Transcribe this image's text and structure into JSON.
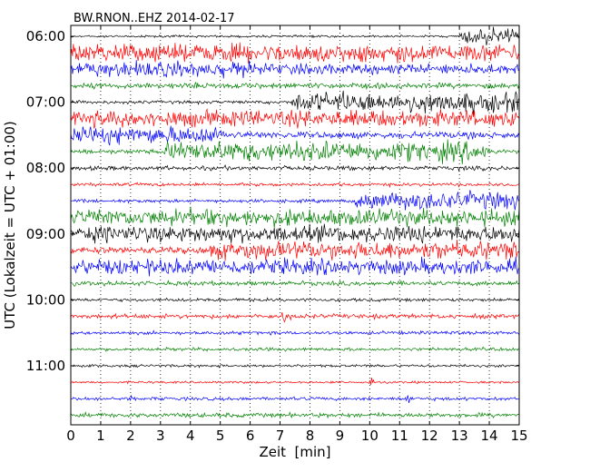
{
  "chart_data": {
    "type": "line",
    "title": "BW.RNON..EHZ 2014-02-17",
    "xlabel": "Zeit  [min]",
    "ylabel": "UTC (Lokalzeit = UTC + 01:00)",
    "xlim": [
      0,
      15
    ],
    "x_ticks": [
      0,
      1,
      2,
      3,
      4,
      5,
      6,
      7,
      8,
      9,
      10,
      11,
      12,
      13,
      14,
      15
    ],
    "x_tick_labels": [
      "0",
      "1",
      "2",
      "3",
      "4",
      "5",
      "6",
      "7",
      "8",
      "9",
      "10",
      "11",
      "12",
      "13",
      "14",
      "15"
    ],
    "y_tick_labels": [
      "06:00",
      "07:00",
      "08:00",
      "09:00",
      "10:00",
      "11:00"
    ],
    "grid": "vertical dotted",
    "colors": [
      "#000000",
      "#ff0000",
      "#0000ff",
      "#008000"
    ],
    "traces": [
      {
        "start": "06:00",
        "base": 1.0,
        "bursts": [
          {
            "from": 13.0,
            "to": 15.0,
            "amp": 7
          }
        ]
      },
      {
        "start": "06:15",
        "base": 8.0,
        "bursts": []
      },
      {
        "start": "06:30",
        "base": 4.5,
        "bursts": [
          {
            "from": 0.0,
            "to": 6.9,
            "amp": 7
          }
        ]
      },
      {
        "start": "06:45",
        "base": 2.5,
        "bursts": []
      },
      {
        "start": "07:00",
        "base": 1.5,
        "bursts": [
          {
            "from": 7.4,
            "to": 15.0,
            "amp": 9
          }
        ]
      },
      {
        "start": "07:15",
        "base": 7.5,
        "bursts": []
      },
      {
        "start": "07:30",
        "base": 3.0,
        "bursts": [
          {
            "from": 0.0,
            "to": 5.2,
            "amp": 8
          }
        ]
      },
      {
        "start": "07:45",
        "base": 2.0,
        "bursts": [
          {
            "from": 3.1,
            "to": 14.0,
            "amp": 9
          }
        ]
      },
      {
        "start": "08:00",
        "base": 2.0,
        "bursts": []
      },
      {
        "start": "08:15",
        "base": 1.5,
        "bursts": []
      },
      {
        "start": "08:30",
        "base": 1.5,
        "bursts": [
          {
            "from": 9.5,
            "to": 15.0,
            "amp": 8
          }
        ]
      },
      {
        "start": "08:45",
        "base": 7.5,
        "bursts": []
      },
      {
        "start": "09:00",
        "base": 7.5,
        "bursts": []
      },
      {
        "start": "09:15",
        "base": 3.0,
        "bursts": [
          {
            "from": 4.5,
            "to": 15.0,
            "amp": 8
          }
        ]
      },
      {
        "start": "09:30",
        "base": 7.0,
        "bursts": []
      },
      {
        "start": "09:45",
        "base": 2.0,
        "bursts": []
      },
      {
        "start": "10:00",
        "base": 1.5,
        "bursts": []
      },
      {
        "start": "10:15",
        "base": 2.0,
        "bursts": [
          {
            "from": 6.9,
            "to": 7.5,
            "amp": 6
          }
        ]
      },
      {
        "start": "10:30",
        "base": 1.5,
        "bursts": []
      },
      {
        "start": "10:45",
        "base": 1.5,
        "bursts": []
      },
      {
        "start": "11:00",
        "base": 1.2,
        "bursts": []
      },
      {
        "start": "11:15",
        "base": 1.0,
        "bursts": [
          {
            "from": 9.9,
            "to": 10.2,
            "amp": 6
          }
        ]
      },
      {
        "start": "11:30",
        "base": 1.5,
        "bursts": [
          {
            "from": 1.8,
            "to": 2.1,
            "amp": 5
          },
          {
            "from": 11.1,
            "to": 11.5,
            "amp": 6
          }
        ]
      },
      {
        "start": "11:45",
        "base": 2.0,
        "bursts": []
      }
    ]
  }
}
